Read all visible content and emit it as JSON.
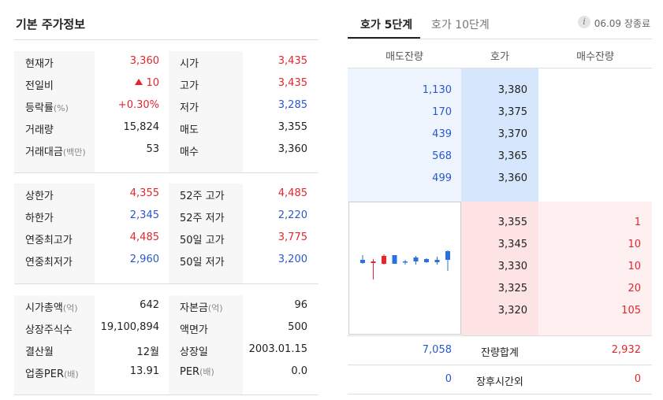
{
  "left": {
    "title": "기본 주가정보",
    "sec1": [
      {
        "k1": "현재가",
        "k1_sub": "",
        "v1": "3,360",
        "v1_color": "red",
        "k2": "시가",
        "k2_sub": "",
        "v2": "3,435",
        "v2_color": "red"
      },
      {
        "k1": "전일비",
        "k1_sub": "",
        "v1": "10",
        "v1_color": "red",
        "k2": "고가",
        "k2_sub": "",
        "v2": "3,435",
        "v2_color": "red"
      },
      {
        "k1": "등락률",
        "k1_sub": "(%)",
        "v1": "+0.30%",
        "v1_color": "red",
        "k2": "저가",
        "k2_sub": "",
        "v2": "3,285",
        "v2_color": "blue"
      },
      {
        "k1": "거래량",
        "k1_sub": "",
        "v1": "15,824",
        "v1_color": "",
        "k2": "매도",
        "k2_sub": "",
        "v2": "3,355",
        "v2_color": ""
      },
      {
        "k1": "거래대금",
        "k1_sub": "(백만)",
        "v1": "53",
        "v1_color": "",
        "k2": "매수",
        "k2_sub": "",
        "v2": "3,360",
        "v2_color": ""
      }
    ],
    "sec2": [
      {
        "k1": "상한가",
        "k1_sub": "",
        "v1": "4,355",
        "v1_color": "red",
        "k2": "52주 고가",
        "k2_sub": "",
        "v2": "4,485",
        "v2_color": "red"
      },
      {
        "k1": "하한가",
        "k1_sub": "",
        "v1": "2,345",
        "v1_color": "blue",
        "k2": "52주 저가",
        "k2_sub": "",
        "v2": "2,220",
        "v2_color": "blue"
      },
      {
        "k1": "연중최고가",
        "k1_sub": "",
        "v1": "4,485",
        "v1_color": "red",
        "k2": "50일 고가",
        "k2_sub": "",
        "v2": "3,775",
        "v2_color": "red"
      },
      {
        "k1": "연중최저가",
        "k1_sub": "",
        "v1": "2,960",
        "v1_color": "blue",
        "k2": "50일 저가",
        "k2_sub": "",
        "v2": "3,200",
        "v2_color": "blue"
      }
    ],
    "sec3": [
      {
        "k1": "시가총액",
        "k1_sub": "(억)",
        "v1": "642",
        "v1_color": "",
        "k2": "자본금",
        "k2_sub": "(억)",
        "v2": "96",
        "v2_color": ""
      },
      {
        "k1": "상장주식수",
        "k1_sub": "",
        "v1": "19,100,894",
        "v1_color": "",
        "k2": "액면가",
        "k2_sub": "",
        "v2": "500",
        "v2_color": ""
      },
      {
        "k1": "결산월",
        "k1_sub": "",
        "v1": "12월",
        "v1_color": "",
        "k2": "상장일",
        "k2_sub": "",
        "v2": "2003.01.15",
        "v2_color": ""
      },
      {
        "k1": "업종PER",
        "k1_sub": "(배)",
        "v1": "13.91",
        "v1_color": "",
        "k2": "PER",
        "k2_sub": "(배)",
        "v2": "0.0",
        "v2_color": ""
      }
    ]
  },
  "right": {
    "tab_5": "호가 5단계",
    "tab_10": "호가 10단계",
    "info_icon": "i",
    "close_status": "06.09 장종료",
    "header": {
      "ask_qty": "매도잔량",
      "price": "호가",
      "bid_qty": "매수잔량"
    },
    "asks": [
      {
        "qty": "1,130",
        "price": "3,380"
      },
      {
        "qty": "170",
        "price": "3,375"
      },
      {
        "qty": "439",
        "price": "3,370"
      },
      {
        "qty": "568",
        "price": "3,365"
      },
      {
        "qty": "499",
        "price": "3,360"
      }
    ],
    "bids": [
      {
        "price": "3,355",
        "qty": "1"
      },
      {
        "price": "3,345",
        "qty": "10"
      },
      {
        "price": "3,330",
        "qty": "10"
      },
      {
        "price": "3,325",
        "qty": "20"
      },
      {
        "price": "3,320",
        "qty": "105"
      }
    ],
    "total": {
      "ask": "7,058",
      "label": "잔량합계",
      "bid": "2,932"
    },
    "after_hours": {
      "ask": "0",
      "label": "장후시간외",
      "bid": "0"
    },
    "mini_chart": {
      "candles": [
        {
          "dir": "blue",
          "high": 0.62,
          "open": 0.5,
          "close": 0.42,
          "low": 0.4
        },
        {
          "dir": "red",
          "high": 0.52,
          "open": 0.46,
          "close": 0.42,
          "low": 0.0
        },
        {
          "dir": "red",
          "high": 0.64,
          "open": 0.6,
          "close": 0.4,
          "low": 0.38
        },
        {
          "dir": "blue",
          "high": 0.62,
          "open": 0.62,
          "close": 0.4,
          "low": 0.4
        },
        {
          "dir": "blue",
          "high": 0.5,
          "open": 0.46,
          "close": 0.44,
          "low": 0.38
        },
        {
          "dir": "blue",
          "high": 0.6,
          "open": 0.56,
          "close": 0.46,
          "low": 0.38
        },
        {
          "dir": "blue",
          "high": 0.54,
          "open": 0.52,
          "close": 0.44,
          "low": 0.42
        },
        {
          "dir": "blue",
          "high": 0.58,
          "open": 0.5,
          "close": 0.44,
          "low": 0.38
        },
        {
          "dir": "blue",
          "high": 0.74,
          "open": 0.72,
          "close": 0.5,
          "low": 0.22
        }
      ]
    }
  }
}
